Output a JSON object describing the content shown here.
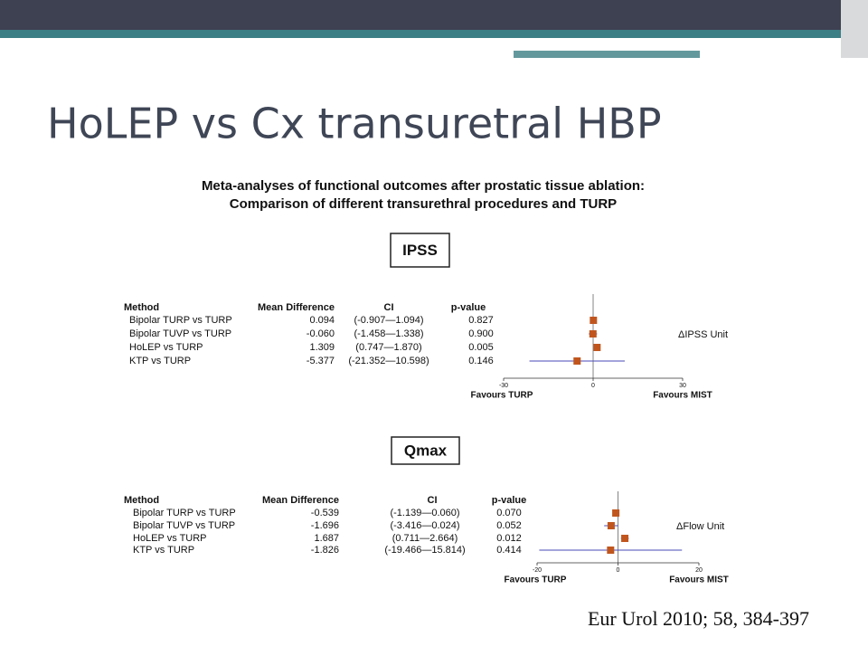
{
  "title": "HoLEP vs Cx transuretral HBP",
  "citation": "Eur Urol 2010; 58, 384-397",
  "figure_title": [
    "Meta-analyses of functional outcomes after prostatic tissue ablation:",
    "Comparison of different transurethral procedures  and TURP"
  ],
  "chart_data": [
    {
      "type": "forest",
      "title": "IPSS",
      "columns": [
        "Method",
        "Mean Difference",
        "CI",
        "p-value"
      ],
      "categories": [
        "Bipolar TURP vs TURP",
        "Bipolar TUVP vs TURP",
        "HoLEP vs TURP",
        "KTP vs TURP"
      ],
      "values": [
        0.094,
        -0.06,
        1.309,
        -5.377
      ],
      "value_labels": [
        "0.094",
        "-0.060",
        "1.309",
        "-5.377"
      ],
      "ci_low": [
        -0.907,
        -1.458,
        0.747,
        -21.352
      ],
      "ci_high": [
        1.094,
        1.338,
        1.87,
        10.598
      ],
      "ci_labels": [
        "(-0.907—1.094)",
        "(-1.458—1.338)",
        "(0.747—1.870)",
        "(-21.352—10.598)"
      ],
      "p_values": [
        "0.827",
        "0.900",
        "0.005",
        "0.146"
      ],
      "xlim": [
        -30,
        30
      ],
      "xticks": [
        -30,
        0,
        30
      ],
      "left_label": "Favours TURP",
      "right_label": "Favours MIST",
      "unit_label": "ΔIPSS Unit",
      "color": "#c0561e",
      "line_color": "#4a4ab8"
    },
    {
      "type": "forest",
      "title": "Qmax",
      "columns": [
        "Method",
        "Mean Difference",
        "CI",
        "p-value"
      ],
      "categories": [
        "Bipolar TURP vs TURP",
        "Bipolar TUVP vs TURP",
        "HoLEP vs TURP",
        "KTP vs TURP"
      ],
      "values": [
        -0.539,
        -1.696,
        1.687,
        -1.826
      ],
      "ci_low": [
        -1.139,
        -3.416,
        0.711,
        -19.466
      ],
      "ci_high": [
        0.06,
        0.024,
        2.664,
        15.814
      ],
      "ci_labels": [
        "(-1.139—0.060)",
        "(-3.416—0.024)",
        "(0.711—2.664)",
        "(-19.466—15.814)"
      ],
      "p_values": [
        "0.070",
        "0.052",
        "0.012",
        "0.414"
      ],
      "xlim": [
        -20,
        20
      ],
      "xticks": [
        -20,
        0,
        20
      ],
      "left_label": "Favours TURP",
      "right_label": "Favours MIST",
      "unit_label": "ΔFlow Unit",
      "color": "#c0561e",
      "line_color": "#4a4ab8"
    }
  ]
}
